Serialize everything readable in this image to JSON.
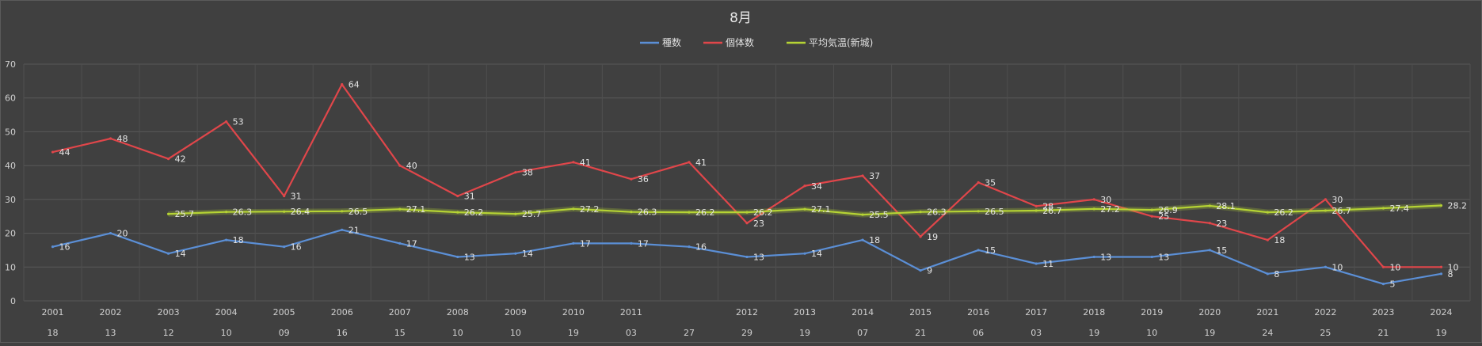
{
  "chart_data": {
    "type": "line",
    "title": "8月",
    "legend_position": "top",
    "grid": true,
    "ylim": [
      0,
      70
    ],
    "y_ticks": [
      0,
      10,
      20,
      30,
      40,
      50,
      60,
      70
    ],
    "categories": [
      "2001",
      "2002",
      "2003",
      "2004",
      "2005",
      "2006",
      "2007",
      "2008",
      "2009",
      "2010",
      "2011",
      "",
      "2012",
      "2013",
      "2014",
      "2015",
      "2016",
      "2017",
      "2018",
      "2019",
      "2020",
      "2021",
      "2022",
      "2023",
      "2024"
    ],
    "day_labels": [
      "18",
      "13",
      "12",
      "10",
      "09",
      "16",
      "15",
      "10",
      "10",
      "19",
      "03",
      "27",
      "29",
      "19",
      "07",
      "21",
      "06",
      "03",
      "19",
      "10",
      "19",
      "24",
      "25",
      "21",
      "19"
    ],
    "series": [
      {
        "name": "種数",
        "color": "#5b8fd6",
        "values": [
          16,
          20,
          14,
          18,
          16,
          21,
          17,
          13,
          14,
          17,
          17,
          16,
          13,
          14,
          18,
          9,
          15,
          11,
          13,
          13,
          15,
          8,
          10,
          5,
          8
        ]
      },
      {
        "name": "個体数",
        "color": "#e0464a",
        "values": [
          44,
          48,
          42,
          53,
          31,
          64,
          40,
          31,
          38,
          41,
          36,
          41,
          23,
          34,
          37,
          19,
          35,
          28,
          30,
          25,
          23,
          18,
          30,
          10,
          10
        ]
      },
      {
        "name": "平均気温(新城)",
        "color": "#b5d334",
        "values": [
          null,
          null,
          25.7,
          26.3,
          26.4,
          26.5,
          27.1,
          26.2,
          25.7,
          27.2,
          26.3,
          26.2,
          26.2,
          27.1,
          25.5,
          26.3,
          26.5,
          26.7,
          27.2,
          26.9,
          28.1,
          26.2,
          26.7,
          27.4,
          28.2
        ]
      }
    ]
  }
}
